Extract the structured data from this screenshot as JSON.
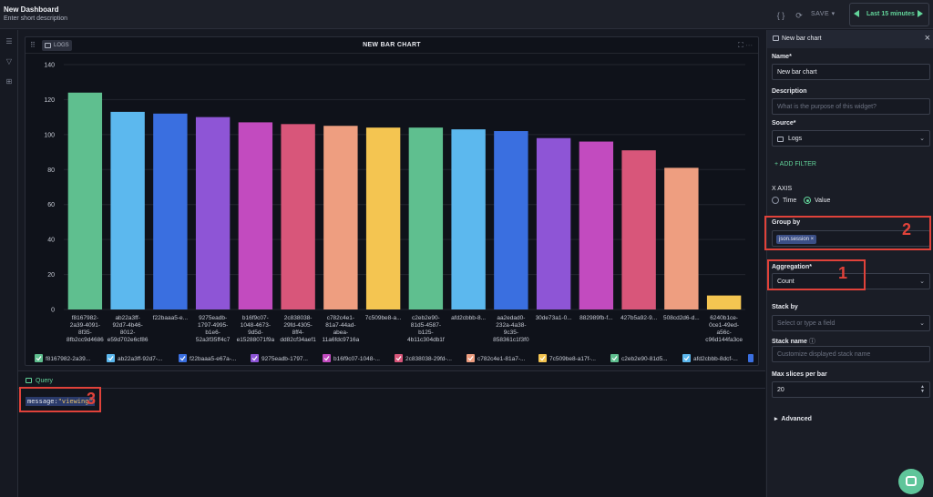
{
  "header": {
    "title": "New Dashboard",
    "description": "Enter short description",
    "save_label": "SAVE",
    "time_range": "Last 15 minutes"
  },
  "widget": {
    "source_chip": "LOGS",
    "title": "NEW BAR CHART"
  },
  "chart_data": {
    "type": "bar",
    "categories": [
      "f8167982-2a39-4091-8f35-8fb2cc9d4686",
      "ab22a3ff-92d7-4b46-8012-e59d702e6cf86",
      "f22baaa5-e...",
      "9275eadb-1797-4995-b1e6-52a3f35ff4c7",
      "b16f9c07-1048-4673-9d5d-e15288071f9a",
      "2c838038-29fd-4305-8ff4-dd82cf34aef1",
      "c782c4e1-81a7-44ad-abea-11a6fdc9716a",
      "7c509be8-a...",
      "c2eb2e90-81d5-4587-b125-4b11c304db1f",
      "afd2cbbb-8...",
      "aa2edad0-232a-4a38-9c35-858361c1f3f0",
      "30de73a1-0...",
      "882989fb-f...",
      "427b5a92-9...",
      "508cd2d6-d...",
      "6240b1ce-0ce1-49ed-a56c-c96d144fa3ce"
    ],
    "tick_lines": [
      [
        "f8167982-",
        "2a39-4091-",
        "8f35-",
        "8fb2cc9d4686"
      ],
      [
        "ab22a3ff-",
        "92d7-4b46-",
        "8012-",
        "e59d702e6cf86"
      ],
      [
        "f22baaa5-e..."
      ],
      [
        "9275eadb-",
        "1797-4995-",
        "b1e6-",
        "52a3f35ff4c7"
      ],
      [
        "b16f9c07-",
        "1048-4673-",
        "9d5d-",
        "e15288071f9a"
      ],
      [
        "2c838038-",
        "29fd-4305-",
        "8ff4-",
        "dd82cf34aef1"
      ],
      [
        "c782c4e1-",
        "81a7-44ad-",
        "abea-",
        "11a6fdc9716a"
      ],
      [
        "7c509be8-a..."
      ],
      [
        "c2eb2e90-",
        "81d5-4587-",
        "b125-",
        "4b11c304db1f"
      ],
      [
        "afd2cbbb-8..."
      ],
      [
        "aa2edad0-",
        "232a-4a38-",
        "9c35-",
        "858361c1f3f0"
      ],
      [
        "30de73a1-0..."
      ],
      [
        "882989fb-f..."
      ],
      [
        "427b5a92-9..."
      ],
      [
        "508cd2d6-d..."
      ],
      [
        "6240b1ce-",
        "0ce1-49ed-",
        "a56c-",
        "c96d144fa3ce"
      ]
    ],
    "values": [
      124,
      113,
      112,
      110,
      107,
      106,
      105,
      104,
      104,
      103,
      102,
      98,
      96,
      91,
      81,
      8
    ],
    "colors": [
      "#5fbf8f",
      "#5cb8ee",
      "#3a6fe0",
      "#8e55d6",
      "#c24bbf",
      "#d8567a",
      "#ee9e80",
      "#f4c551",
      "#5fbf8f",
      "#5cb8ee",
      "#3a6fe0",
      "#8e55d6",
      "#c24bbf",
      "#d8567a",
      "#ee9e80",
      "#f4c551"
    ],
    "ylim": [
      0,
      140
    ],
    "yticks": [
      0,
      20,
      40,
      60,
      80,
      100,
      120,
      140
    ],
    "grid": true,
    "legend_position": "bottom",
    "legend": [
      "f8167982-2a39...",
      "ab22a3ff-92d7-...",
      "f22baaa5-e67a-...",
      "9275eadb-1797...",
      "b16f9c07-1048-...",
      "2c838038-29fd-...",
      "c782c4e1-81a7-...",
      "7c509be8-a17f-...",
      "c2eb2e90-81d5...",
      "afd2cbbb-8dcf-..."
    ]
  },
  "query": {
    "tab_label": "Query",
    "text_key": "message:",
    "text_value": "\"viewing\""
  },
  "config": {
    "panel_title": "New bar chart",
    "name_label": "Name*",
    "name_value": "New bar chart",
    "description_label": "Description",
    "description_placeholder": "What is the purpose of this widget?",
    "source_label": "Source*",
    "source_value": "Logs",
    "add_filter_label": "+ ADD FILTER",
    "x_axis_label": "X AXIS",
    "x_axis_options": [
      "Time",
      "Value"
    ],
    "x_axis_selected": "Value",
    "group_by_label": "Group by",
    "group_by_tag": "json.session ×",
    "aggregation_label": "Aggregation*",
    "aggregation_value": "Count",
    "stack_by_label": "Stack by",
    "stack_by_placeholder": "Select or type a field",
    "stack_name_label": "Stack name",
    "stack_name_placeholder": "Customize displayed stack name",
    "max_slices_label": "Max slices per bar",
    "max_slices_value": "20",
    "advanced_label": "Advanced"
  },
  "annotations": {
    "box1": "1",
    "box2": "2",
    "box3": "3"
  },
  "theme": {
    "accent": "#62d49a",
    "annotation_red": "#e0423a",
    "panel_bg": "#0f121a"
  }
}
